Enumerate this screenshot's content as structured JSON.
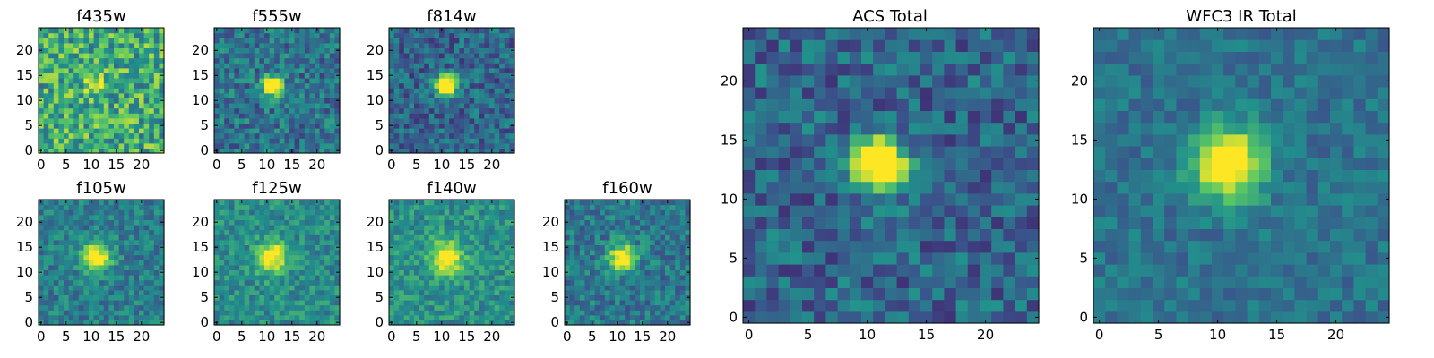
{
  "figure": {
    "colormap": "viridis",
    "colormap_stops": [
      "#440154",
      "#3b528b",
      "#21918c",
      "#5ec962",
      "#fde725"
    ]
  },
  "chart_data": [
    {
      "type": "heatmap",
      "title": "f435w",
      "grid_size": 25,
      "xlim": [
        0,
        24
      ],
      "ylim": [
        0,
        24
      ],
      "xticks": [
        0,
        5,
        10,
        15,
        20
      ],
      "yticks": [
        0,
        5,
        10,
        15,
        20
      ],
      "source_center": [
        11,
        13
      ],
      "source_radius": 1.2,
      "source_peak": 0.35,
      "background_level": 0.62,
      "noise_level": 0.55
    },
    {
      "type": "heatmap",
      "title": "f555w",
      "grid_size": 25,
      "xlim": [
        0,
        24
      ],
      "ylim": [
        0,
        24
      ],
      "xticks": [
        0,
        5,
        10,
        15,
        20
      ],
      "yticks": [
        0,
        5,
        10,
        15,
        20
      ],
      "source_center": [
        11,
        13
      ],
      "source_radius": 1.3,
      "source_peak": 0.75,
      "background_level": 0.38,
      "noise_level": 0.38
    },
    {
      "type": "heatmap",
      "title": "f814w",
      "grid_size": 25,
      "xlim": [
        0,
        24
      ],
      "ylim": [
        0,
        24
      ],
      "xticks": [
        0,
        5,
        10,
        15,
        20
      ],
      "yticks": [
        0,
        5,
        10,
        15,
        20
      ],
      "source_center": [
        11,
        13
      ],
      "source_radius": 1.4,
      "source_peak": 0.8,
      "background_level": 0.33,
      "noise_level": 0.36
    },
    {
      "type": "heatmap",
      "title": "f105w",
      "grid_size": 25,
      "xlim": [
        0,
        24
      ],
      "ylim": [
        0,
        24
      ],
      "xticks": [
        0,
        5,
        10,
        15,
        20
      ],
      "yticks": [
        0,
        5,
        10,
        15,
        20
      ],
      "source_center": [
        11,
        13
      ],
      "source_radius": 2.0,
      "source_peak": 0.5,
      "background_level": 0.42,
      "noise_level": 0.3
    },
    {
      "type": "heatmap",
      "title": "f125w",
      "grid_size": 25,
      "xlim": [
        0,
        24
      ],
      "ylim": [
        0,
        24
      ],
      "xticks": [
        0,
        5,
        10,
        15,
        20
      ],
      "yticks": [
        0,
        5,
        10,
        15,
        20
      ],
      "source_center": [
        11,
        13
      ],
      "source_radius": 2.2,
      "source_peak": 0.45,
      "background_level": 0.48,
      "noise_level": 0.3
    },
    {
      "type": "heatmap",
      "title": "f140w",
      "grid_size": 25,
      "xlim": [
        0,
        24
      ],
      "ylim": [
        0,
        24
      ],
      "xticks": [
        0,
        5,
        10,
        15,
        20
      ],
      "yticks": [
        0,
        5,
        10,
        15,
        20
      ],
      "source_center": [
        11,
        13
      ],
      "source_radius": 2.2,
      "source_peak": 0.45,
      "background_level": 0.5,
      "noise_level": 0.3
    },
    {
      "type": "heatmap",
      "title": "f160w",
      "grid_size": 25,
      "xlim": [
        0,
        24
      ],
      "ylim": [
        0,
        24
      ],
      "xticks": [
        0,
        5,
        10,
        15,
        20
      ],
      "yticks": [
        0,
        5,
        10,
        15,
        20
      ],
      "source_center": [
        11,
        13
      ],
      "source_radius": 1.8,
      "source_peak": 0.55,
      "background_level": 0.4,
      "noise_level": 0.32
    },
    {
      "type": "heatmap",
      "title": "ACS Total",
      "grid_size": 25,
      "xlim": [
        0,
        24
      ],
      "ylim": [
        0,
        24
      ],
      "xticks": [
        0,
        5,
        10,
        15,
        20
      ],
      "yticks": [
        0,
        5,
        10,
        15,
        20
      ],
      "source_center": [
        11,
        13
      ],
      "source_radius": 1.5,
      "source_peak": 0.8,
      "background_level": 0.33,
      "noise_level": 0.36
    },
    {
      "type": "heatmap",
      "title": "WFC3 IR Total",
      "grid_size": 25,
      "xlim": [
        0,
        24
      ],
      "ylim": [
        0,
        24
      ],
      "xticks": [
        0,
        5,
        10,
        15,
        20
      ],
      "yticks": [
        0,
        5,
        10,
        15,
        20
      ],
      "source_center": [
        11,
        13
      ],
      "source_radius": 2.0,
      "source_peak": 0.6,
      "background_level": 0.38,
      "noise_level": 0.22
    }
  ]
}
